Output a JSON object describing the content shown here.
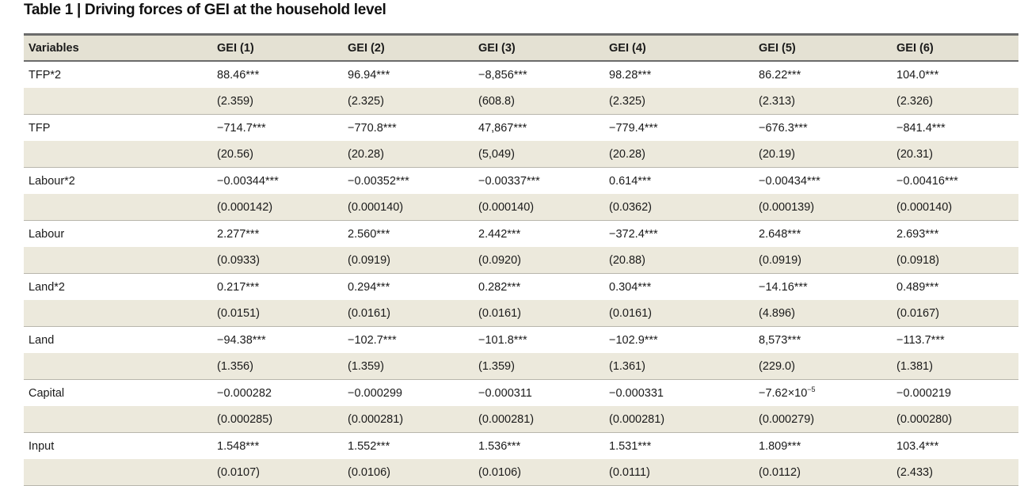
{
  "title": "Table 1 | Driving forces of GEI at the household level",
  "headers": [
    "Variables",
    "GEI (1)",
    "GEI (2)",
    "GEI (3)",
    "GEI (4)",
    "GEI (5)",
    "GEI (6)"
  ],
  "rows": [
    {
      "variable": "TFP*2",
      "coef": [
        "88.46***",
        "96.94***",
        "−8,856***",
        "98.28***",
        "86.22***",
        "104.0***"
      ],
      "se": [
        "(2.359)",
        "(2.325)",
        "(608.8)",
        "(2.325)",
        "(2.313)",
        "(2.326)"
      ]
    },
    {
      "variable": "TFP",
      "coef": [
        "−714.7***",
        "−770.8***",
        "47,867***",
        "−779.4***",
        "−676.3***",
        "−841.4***"
      ],
      "se": [
        "(20.56)",
        "(20.28)",
        "(5,049)",
        "(20.28)",
        "(20.19)",
        "(20.31)"
      ]
    },
    {
      "variable": "Labour*2",
      "coef": [
        "−0.00344***",
        "−0.00352***",
        "−0.00337***",
        "0.614***",
        "−0.00434***",
        "−0.00416***"
      ],
      "se": [
        "(0.000142)",
        "(0.000140)",
        "(0.000140)",
        "(0.0362)",
        "(0.000139)",
        "(0.000140)"
      ]
    },
    {
      "variable": "Labour",
      "coef": [
        "2.277***",
        "2.560***",
        "2.442***",
        "−372.4***",
        "2.648***",
        "2.693***"
      ],
      "se": [
        "(0.0933)",
        "(0.0919)",
        "(0.0920)",
        "(20.88)",
        "(0.0919)",
        "(0.0918)"
      ]
    },
    {
      "variable": "Land*2",
      "coef": [
        "0.217***",
        "0.294***",
        "0.282***",
        "0.304***",
        "−14.16***",
        "0.489***"
      ],
      "se": [
        "(0.0151)",
        "(0.0161)",
        "(0.0161)",
        "(0.0161)",
        "(4.896)",
        "(0.0167)"
      ]
    },
    {
      "variable": "Land",
      "coef": [
        "−94.38***",
        "−102.7***",
        "−101.8***",
        "−102.9***",
        "8,573***",
        "−113.7***"
      ],
      "se": [
        "(1.356)",
        "(1.359)",
        "(1.359)",
        "(1.361)",
        "(229.0)",
        "(1.381)"
      ]
    },
    {
      "variable": "Capital",
      "coef": [
        "−0.000282",
        "−0.000299",
        "−0.000311",
        "−0.000331",
        "−7.62×10",
        "−0.000219"
      ],
      "se": [
        "(0.000285)",
        "(0.000281)",
        "(0.000281)",
        "(0.000281)",
        "(0.000279)",
        "(0.000280)"
      ]
    },
    {
      "variable": "Input",
      "coef": [
        "1.548***",
        "1.552***",
        "1.536***",
        "1.531***",
        "1.809***",
        "103.4***"
      ],
      "se": [
        "(0.0107)",
        "(0.0106)",
        "(0.0106)",
        "(0.0111)",
        "(0.0112)",
        "(2.433)"
      ]
    }
  ],
  "capital_gei5_exponent": "−5",
  "colors": {
    "header_bg": "#e4e1d3",
    "se_row_bg": "#ece9dc",
    "rule": "#6b6b6b"
  }
}
